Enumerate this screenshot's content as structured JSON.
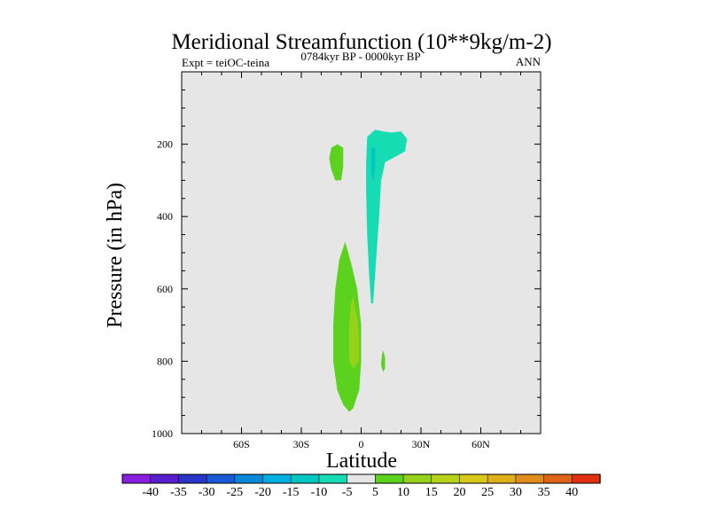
{
  "chart_data": {
    "type": "contour",
    "title": "Meridional Streamfunction (10**9kg/m-2)",
    "subtitle_left": "Expt = teiOC-teina",
    "subtitle_center": "0784kyr BP - 0000kyr BP",
    "subtitle_right": "ANN",
    "xlabel": "Latitude",
    "ylabel": "Pressure (in hPa)",
    "xlim": [
      -90,
      90
    ],
    "ylim": [
      1000,
      0
    ],
    "x_ticks": [
      {
        "value": -60,
        "label": "60S"
      },
      {
        "value": -30,
        "label": "30S"
      },
      {
        "value": 0,
        "label": "0"
      },
      {
        "value": 30,
        "label": "30N"
      },
      {
        "value": 60,
        "label": "60N"
      }
    ],
    "y_ticks": [
      {
        "value": 200,
        "label": "200"
      },
      {
        "value": 400,
        "label": "400"
      },
      {
        "value": 600,
        "label": "600"
      },
      {
        "value": 800,
        "label": "800"
      },
      {
        "value": 1000,
        "label": "1000"
      }
    ],
    "background_color": "#e6e6e6",
    "colorbar": {
      "labels": [
        "-40",
        "-35",
        "-30",
        "-25",
        "-20",
        "-15",
        "-10",
        "-5",
        "5",
        "10",
        "15",
        "20",
        "25",
        "30",
        "35",
        "40"
      ],
      "colors": [
        "#8a1ee0",
        "#5a1ecc",
        "#2a35c8",
        "#1a5ad8",
        "#0a88d8",
        "#00aee0",
        "#00c8c0",
        "#16dcb4",
        "#e6e6e6",
        "#5ad21e",
        "#96d21a",
        "#b8d21a",
        "#d8c81a",
        "#e0b01a",
        "#e08c1a",
        "#e06418",
        "#e03010"
      ]
    },
    "regions": [
      {
        "name": "cyan-upper-cell",
        "level": "-5",
        "color": "#16dcb4",
        "points": [
          [
            3,
            180
          ],
          [
            7,
            160
          ],
          [
            11,
            165
          ],
          [
            15,
            168
          ],
          [
            20,
            165
          ],
          [
            23,
            185
          ],
          [
            22,
            220
          ],
          [
            17,
            235
          ],
          [
            12,
            250
          ],
          [
            10,
            300
          ],
          [
            9,
            400
          ],
          [
            8,
            480
          ],
          [
            7,
            560
          ],
          [
            6,
            640
          ],
          [
            5,
            640
          ],
          [
            4,
            560
          ],
          [
            3,
            450
          ],
          [
            2.5,
            330
          ],
          [
            2.5,
            250
          ]
        ]
      },
      {
        "name": "blue-core",
        "level": "-10",
        "color": "#00c8c0",
        "points": [
          [
            5,
            210
          ],
          [
            7,
            210
          ],
          [
            7,
            270
          ],
          [
            6,
            300
          ],
          [
            5,
            280
          ]
        ]
      },
      {
        "name": "green-upper-small",
        "level": "5",
        "color": "#5ad21e",
        "points": [
          [
            -15,
            210
          ],
          [
            -12,
            200
          ],
          [
            -9,
            210
          ],
          [
            -9,
            260
          ],
          [
            -10,
            300
          ],
          [
            -13,
            300
          ],
          [
            -15,
            270
          ],
          [
            -16,
            240
          ]
        ]
      },
      {
        "name": "green-lower-cell",
        "level": "5",
        "color": "#5ad21e",
        "points": [
          [
            -8,
            470
          ],
          [
            -5,
            530
          ],
          [
            -2,
            600
          ],
          [
            0,
            700
          ],
          [
            0,
            800
          ],
          [
            -1,
            880
          ],
          [
            -4,
            930
          ],
          [
            -6,
            940
          ],
          [
            -9,
            920
          ],
          [
            -12,
            880
          ],
          [
            -14,
            800
          ],
          [
            -14,
            700
          ],
          [
            -13,
            600
          ],
          [
            -11,
            520
          ]
        ]
      },
      {
        "name": "lime-core",
        "level": "10",
        "color": "#96d21a",
        "points": [
          [
            -4,
            620
          ],
          [
            -2,
            680
          ],
          [
            -1,
            740
          ],
          [
            -1,
            800
          ],
          [
            -4,
            820
          ],
          [
            -6,
            800
          ],
          [
            -6,
            700
          ],
          [
            -5,
            640
          ]
        ]
      },
      {
        "name": "green-tiny-cell",
        "level": "5",
        "color": "#5ad21e",
        "points": [
          [
            11,
            770
          ],
          [
            12,
            790
          ],
          [
            12,
            820
          ],
          [
            11,
            830
          ],
          [
            10,
            810
          ],
          [
            10.5,
            780
          ]
        ]
      }
    ]
  }
}
